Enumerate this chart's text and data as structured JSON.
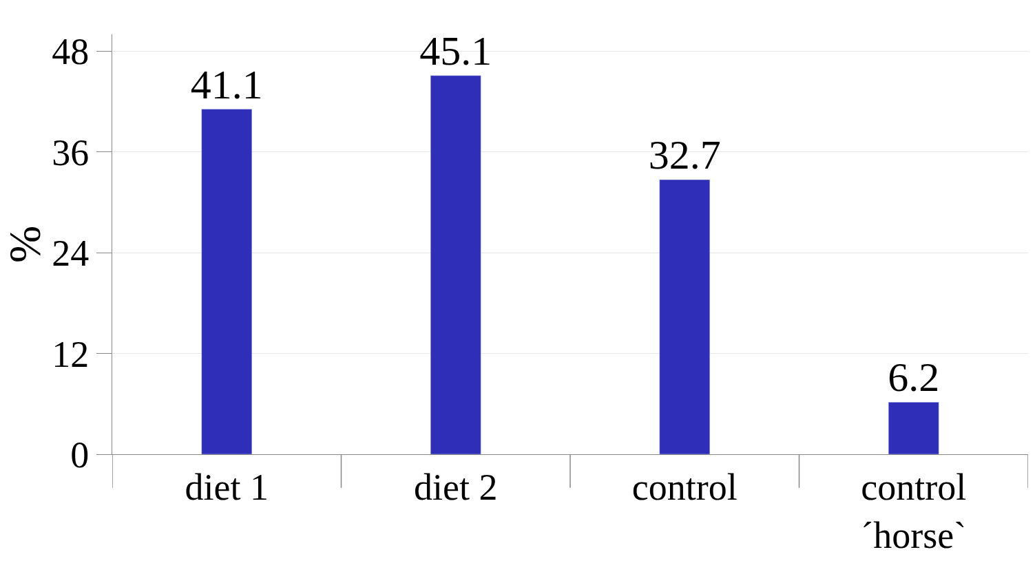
{
  "chart_data": {
    "type": "bar",
    "ylabel": "%",
    "categories": [
      "diet 1",
      "diet 2",
      "control",
      "control\n´horse`"
    ],
    "values": [
      41.1,
      45.1,
      32.7,
      6.2
    ],
    "color": "#2e2eb8",
    "ylim": [
      0,
      50
    ],
    "yticks": [
      0,
      12,
      24,
      36,
      48
    ],
    "grid": "y",
    "data_labels": true
  }
}
